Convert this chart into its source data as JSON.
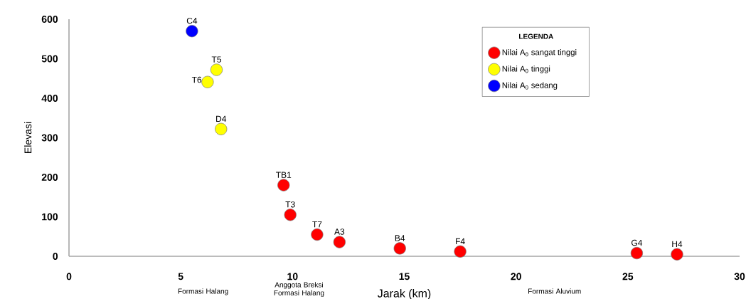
{
  "chart_data": {
    "type": "scatter",
    "xlabel": "Jarak (km)",
    "ylabel": "Elevasi",
    "legend_title": "LEGENDA",
    "xlim": [
      0,
      30
    ],
    "ylim": [
      0,
      600
    ],
    "xticks": [
      0,
      5,
      10,
      15,
      20,
      25,
      30
    ],
    "yticks": [
      0,
      100,
      200,
      300,
      400,
      500,
      600
    ],
    "marker": "circle",
    "legend": "top right",
    "series": [
      {
        "name": "Nilai A$_{0}$ sangat tinggi",
        "color": "#ff0000",
        "x": [
          9.6,
          9.9,
          11.1,
          12.1,
          14.8,
          17.5,
          25.4,
          27.2
        ],
        "values": [
          180,
          105,
          55,
          36,
          20,
          12,
          8,
          5
        ]
      },
      {
        "name": "Nilai A$_{0}$ tinggi",
        "color": "#ffff00",
        "x": [
          6.6,
          6.2,
          6.8
        ],
        "values": [
          472,
          441,
          322
        ]
      },
      {
        "name": "Nilai A$_{0}$ sedang",
        "color": "#0000ff",
        "x": [
          5.5
        ],
        "values": [
          570
        ]
      }
    ],
    "annotations": [
      {
        "text": "C4",
        "x": 5.5,
        "y": 570
      },
      {
        "text": "T5",
        "x": 6.6,
        "y": 472
      },
      {
        "text": "T6",
        "x": 6.2,
        "y": 441
      },
      {
        "text": "D4",
        "x": 6.8,
        "y": 322
      },
      {
        "text": "TB1",
        "x": 9.6,
        "y": 180
      },
      {
        "text": "T3",
        "x": 9.9,
        "y": 105
      },
      {
        "text": "T7",
        "x": 11.1,
        "y": 55
      },
      {
        "text": "A3",
        "x": 12.1,
        "y": 36
      },
      {
        "text": "B4",
        "x": 14.8,
        "y": 20
      },
      {
        "text": "F4",
        "x": 17.5,
        "y": 12
      },
      {
        "text": "G4",
        "x": 25.4,
        "y": 8
      },
      {
        "text": "H4",
        "x": 27.2,
        "y": 5
      },
      "Formasi Halang",
      "Anggota Breksi Formasi Halang",
      "Formasi Aluvium"
    ]
  }
}
